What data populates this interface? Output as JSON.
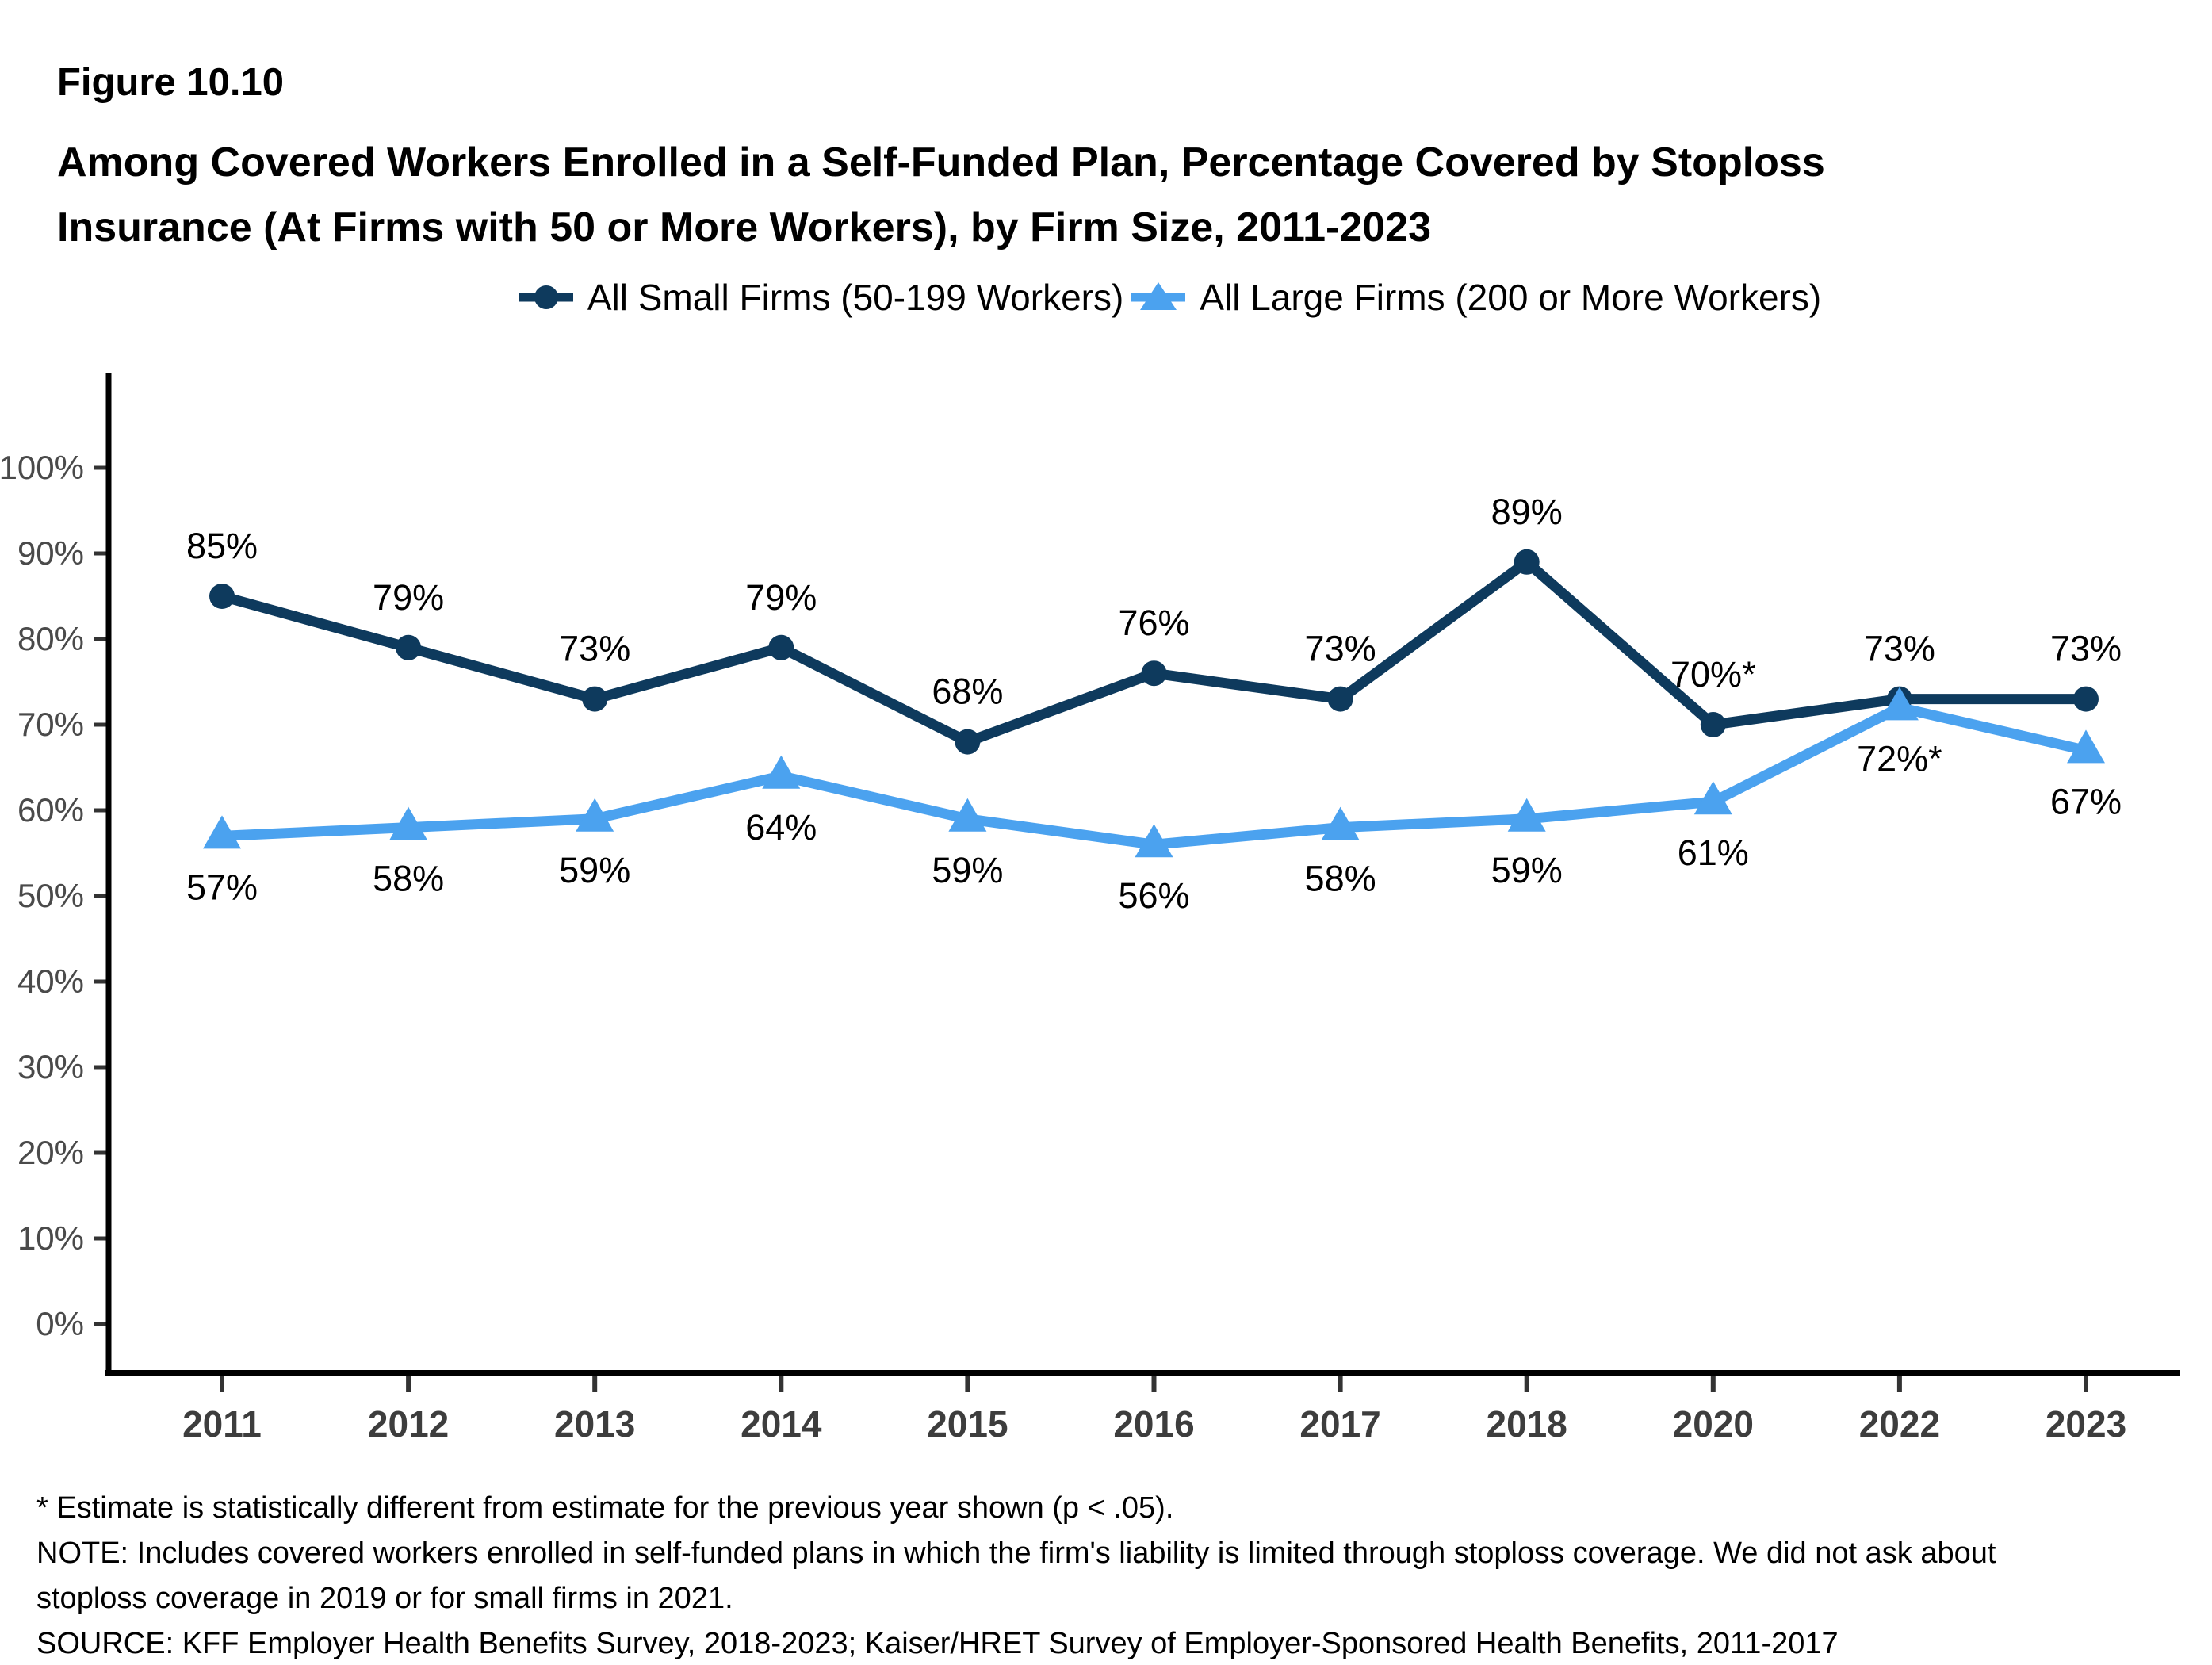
{
  "figure": {
    "number": "Figure 10.10",
    "title_lines": [
      "Among Covered Workers Enrolled in a Self-Funded Plan, Percentage Covered by Stoploss",
      "Insurance (At Firms with 50 or More Workers), by Firm Size, 2011-2023"
    ]
  },
  "legend": {
    "items": [
      {
        "label": "All Small Firms (50-199 Workers)",
        "marker": "circle",
        "color": "#0E3A5D"
      },
      {
        "label": "All Large Firms (200 or More Workers)",
        "marker": "triangle",
        "color": "#4BA2EF"
      }
    ]
  },
  "chart_data": {
    "type": "line",
    "title": "Among Covered Workers Enrolled in a Self-Funded Plan, Percentage Covered by Stoploss Insurance (At Firms with 50 or More Workers), by Firm Size, 2011-2023",
    "categories": [
      "2011",
      "2012",
      "2013",
      "2014",
      "2015",
      "2016",
      "2017",
      "2018",
      "2020",
      "2022",
      "2023"
    ],
    "series": [
      {
        "name": "All Small Firms (50-199 Workers)",
        "color": "#0E3A5D",
        "marker": "circle",
        "values": [
          85,
          79,
          73,
          79,
          68,
          76,
          73,
          89,
          70,
          73,
          73
        ],
        "point_labels": [
          "85%",
          "79%",
          "73%",
          "79%",
          "68%",
          "76%",
          "73%",
          "89%",
          "70%*",
          "73%",
          "73%"
        ],
        "label_position": "above"
      },
      {
        "name": "All Large Firms (200 or More Workers)",
        "color": "#4BA2EF",
        "marker": "triangle",
        "values": [
          57,
          58,
          59,
          64,
          59,
          56,
          58,
          59,
          61,
          72,
          67
        ],
        "point_labels": [
          "57%",
          "58%",
          "59%",
          "64%",
          "59%",
          "56%",
          "58%",
          "59%",
          "61%",
          "72%*",
          "67%"
        ],
        "label_position": "below"
      }
    ],
    "xlabel": "",
    "ylabel": "",
    "y_ticks": [
      "0%",
      "10%",
      "20%",
      "30%",
      "40%",
      "50%",
      "60%",
      "70%",
      "80%",
      "90%",
      "100%"
    ],
    "ylim": [
      0,
      100
    ],
    "grid": false,
    "legend_position": "top"
  },
  "footnotes": {
    "asterisk": "* Estimate is statistically different from estimate for the previous year shown (p < .05).",
    "note_lines": [
      "NOTE: Includes covered workers enrolled in self-funded plans in which the firm's liability is limited through stoploss coverage. We did not ask about",
      "stoploss coverage in 2019 or for small firms in 2021."
    ],
    "source": "SOURCE: KFF Employer Health Benefits Survey, 2018-2023; Kaiser/HRET Survey of Employer-Sponsored Health Benefits, 2011-2017"
  },
  "colors": {
    "small_firms": "#0E3A5D",
    "large_firms": "#4BA2EF",
    "axis": "#000000",
    "tick_mark": "#333333",
    "y_tick_label": "#4a4a4a",
    "x_tick_label": "#3d3d3d",
    "data_label": "#000000"
  }
}
